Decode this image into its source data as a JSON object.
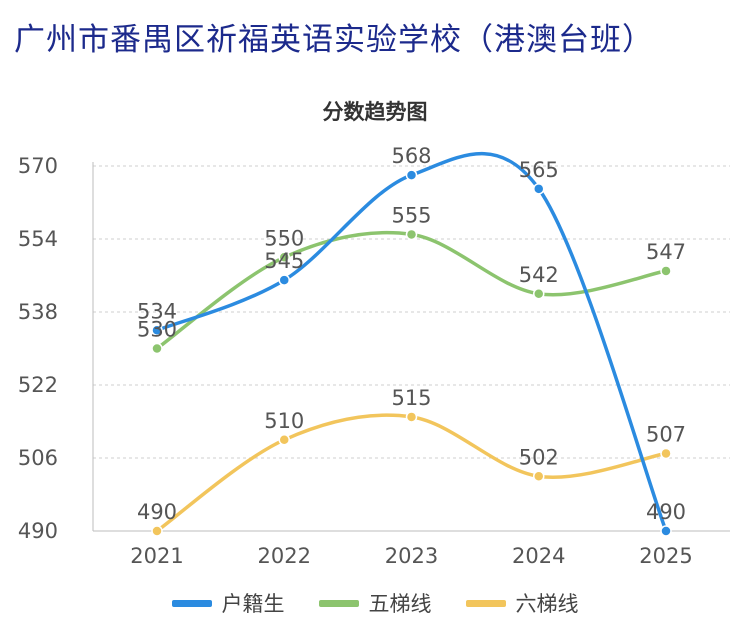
{
  "page_title": "广州市番禺区祈福英语实验学校（港澳台班）",
  "chart_data": {
    "type": "line",
    "title": "分数趋势图",
    "xlabel": "",
    "ylabel": "",
    "categories": [
      "2021",
      "2022",
      "2023",
      "2024",
      "2025"
    ],
    "yticks": [
      490,
      506,
      522,
      538,
      554,
      570
    ],
    "ylim": [
      490,
      570
    ],
    "grid": true,
    "smooth": true,
    "legend_position": "bottom",
    "series": [
      {
        "name": "户籍生",
        "color": "#2b8be0",
        "values": [
          534,
          545,
          568,
          565,
          490
        ]
      },
      {
        "name": "五梯线",
        "color": "#8cc46e",
        "values": [
          530,
          550,
          555,
          542,
          547
        ]
      },
      {
        "name": "六梯线",
        "color": "#f2c55c",
        "values": [
          490,
          510,
          515,
          502,
          507
        ]
      }
    ]
  }
}
